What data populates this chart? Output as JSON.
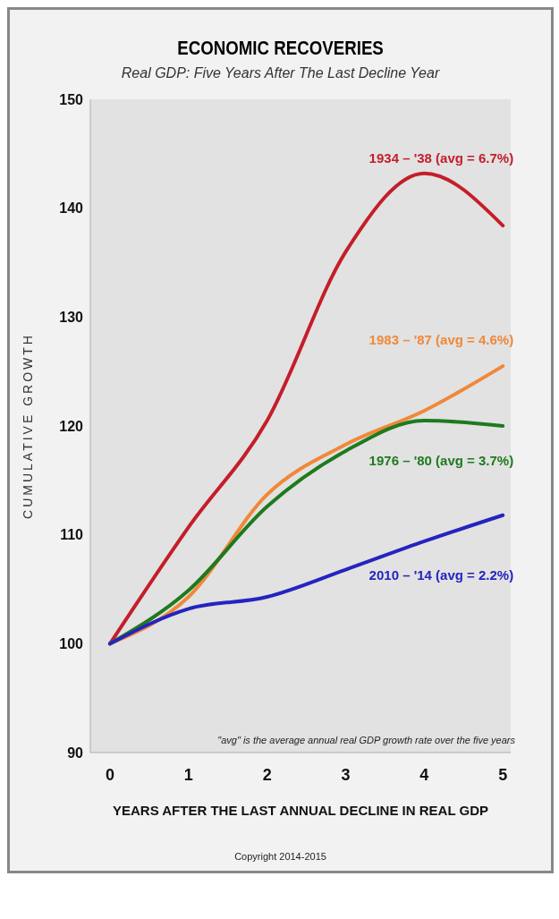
{
  "chart_data": {
    "type": "line",
    "title": "ECONOMIC RECOVERIES",
    "subtitle": "Real GDP: Five Years After The Last Decline Year",
    "xlabel": "YEARS AFTER THE LAST ANNUAL DECLINE IN REAL GDP",
    "ylabel": "CUMULATIVE GROWTH",
    "x": [
      0,
      1,
      2,
      3,
      4,
      5
    ],
    "series": [
      {
        "name": "1934 – '38 (avg = 6.7%)",
        "color": "#c41e2a",
        "values": [
          100,
          110.7,
          120.5,
          136,
          143.2,
          138.4
        ]
      },
      {
        "name": "1983 – '87 (avg = 4.6%)",
        "color": "#f0883a",
        "values": [
          100,
          104.3,
          113.7,
          118.3,
          121.4,
          125.5
        ]
      },
      {
        "name": "1976 – '80 (avg = 3.7%)",
        "color": "#1e7a1e",
        "values": [
          100,
          104.9,
          112.6,
          117.7,
          120.5,
          120
        ]
      },
      {
        "name": "2010 – '14 (avg = 2.2%)",
        "color": "#2424c0",
        "values": [
          100,
          103.2,
          104.3,
          106.8,
          109.4,
          111.8
        ]
      }
    ],
    "xlim": [
      -0.25,
      5.1
    ],
    "xticks": [
      0,
      1,
      2,
      3,
      4,
      5
    ],
    "ylim": [
      90,
      150
    ],
    "yticks": [
      90,
      100,
      110,
      120,
      130,
      140,
      150
    ],
    "grid": false,
    "legend": false,
    "marker": "none",
    "line_style": "solid",
    "annotations": [
      "\"avg\" is the average annual real GDP growth rate over the five years",
      "Copyright 2014-2015"
    ]
  }
}
